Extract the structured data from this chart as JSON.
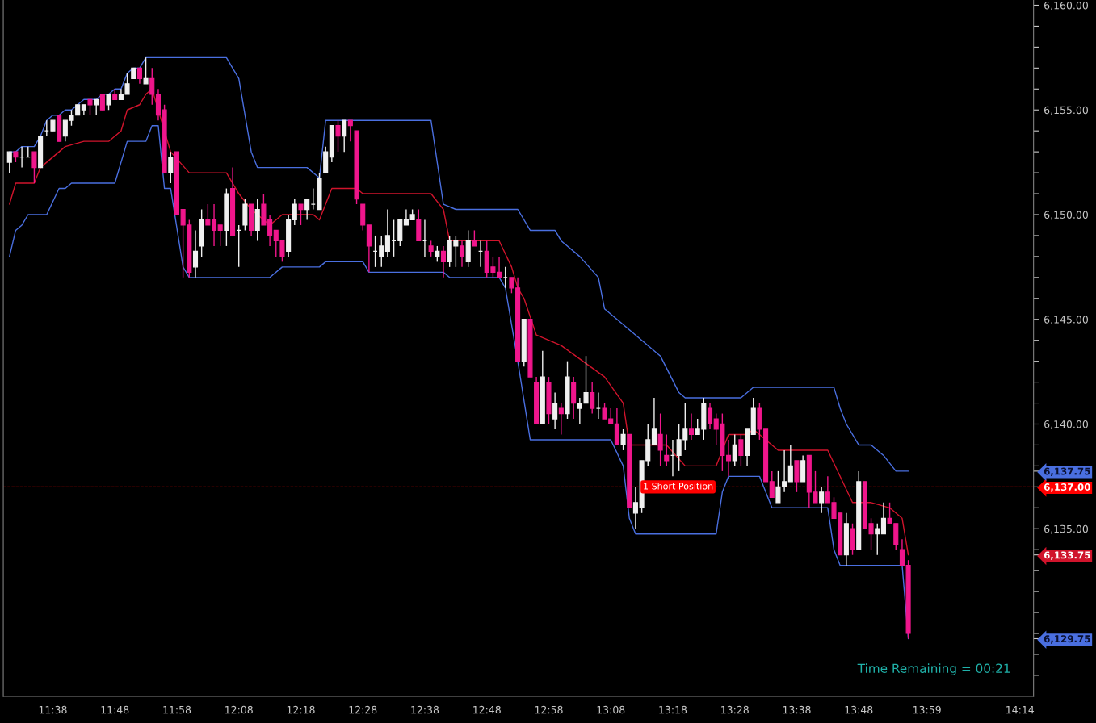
{
  "chart_data": {
    "type": "candlestick",
    "x": [
      11.5167,
      11.5333,
      11.55,
      11.5667,
      11.5833,
      11.6,
      11.6167,
      11.6333,
      11.65,
      11.6667,
      11.6833,
      11.7,
      11.7167,
      11.7333,
      11.75,
      11.7667,
      11.7833,
      11.8,
      11.8167,
      11.8333,
      11.85,
      11.8667,
      11.8833,
      11.9,
      11.9167,
      11.9333,
      11.95,
      11.9667,
      11.9833,
      12.0,
      12.0167,
      12.0333,
      12.05,
      12.0667,
      12.0833,
      12.1,
      12.1167,
      12.1333,
      12.15,
      12.1667,
      12.1833,
      12.2,
      12.2167,
      12.2333,
      12.25,
      12.2667,
      12.2833,
      12.3,
      12.3167,
      12.3333,
      12.35,
      12.3667,
      12.3833,
      12.4,
      12.4167,
      12.4333,
      12.45,
      12.4667,
      12.4833,
      12.5,
      12.5167,
      12.5333,
      12.55,
      12.5667,
      12.5833,
      12.6,
      12.6167,
      12.6333,
      12.65,
      12.6667,
      12.6833,
      12.7,
      12.7167,
      12.7333,
      12.75,
      12.7667,
      12.7833,
      12.8,
      12.8167,
      12.8333,
      12.85,
      12.8667,
      12.8833,
      12.9,
      12.9167,
      12.9333,
      12.95,
      12.9667,
      12.9833,
      13.0,
      13.0167,
      13.0333,
      13.05,
      13.0667,
      13.0833,
      13.1,
      13.1167,
      13.1333,
      13.15,
      13.1667,
      13.1833,
      13.2,
      13.2167,
      13.2333,
      13.25,
      13.2667,
      13.2833,
      13.3,
      13.3167,
      13.3333,
      13.35,
      13.3667,
      13.3833,
      13.4,
      13.4167,
      13.4333,
      13.45,
      13.4667,
      13.4833,
      13.5,
      13.5167,
      13.5333,
      13.55,
      13.5667,
      13.5833,
      13.6,
      13.6167,
      13.6333,
      13.65,
      13.6667,
      13.6833,
      13.7,
      13.7167,
      13.7333,
      13.75,
      13.7667,
      13.7833,
      13.8,
      13.8167,
      13.8333,
      13.85,
      13.8667,
      13.8833,
      13.9,
      13.9167,
      13.9333
    ],
    "ohlc": [
      [
        6152.5,
        6153.0,
        6152.0,
        6153.0
      ],
      [
        6153.0,
        6153.0,
        6152.5,
        6152.75
      ],
      [
        6152.75,
        6153.25,
        6152.25,
        6152.75
      ],
      [
        6152.75,
        6153.25,
        6152.75,
        6152.75
      ],
      [
        6153.0,
        6153.0,
        6151.5,
        6152.25
      ],
      [
        6152.25,
        6153.75,
        6152.25,
        6153.75
      ],
      [
        6154.0,
        6154.5,
        6153.75,
        6154.0
      ],
      [
        6154.0,
        6154.5,
        6154.0,
        6154.5
      ],
      [
        6154.75,
        6154.75,
        6153.5,
        6153.5
      ],
      [
        6153.75,
        6154.5,
        6153.5,
        6154.5
      ],
      [
        6154.5,
        6155.0,
        6154.25,
        6154.75
      ],
      [
        6154.75,
        6155.25,
        6154.75,
        6155.25
      ],
      [
        6155.0,
        6155.25,
        6154.75,
        6155.25
      ],
      [
        6155.5,
        6155.5,
        6154.75,
        6155.25
      ],
      [
        6155.25,
        6155.5,
        6154.75,
        6155.5
      ],
      [
        6155.75,
        6155.75,
        6155.0,
        6155.0
      ],
      [
        6155.25,
        6155.75,
        6155.0,
        6155.75
      ],
      [
        6155.75,
        6156.0,
        6155.5,
        6155.5
      ],
      [
        6155.5,
        6156.0,
        6155.5,
        6155.75
      ],
      [
        6155.75,
        6156.75,
        6155.75,
        6156.25
      ],
      [
        6156.5,
        6157.0,
        6156.5,
        6157.0
      ],
      [
        6157.0,
        6157.0,
        6156.25,
        6156.5
      ],
      [
        6156.25,
        6157.5,
        6156.25,
        6156.5
      ],
      [
        6156.5,
        6157.0,
        6155.25,
        6155.75
      ],
      [
        6155.75,
        6156.0,
        6154.5,
        6154.75
      ],
      [
        6155.0,
        6155.25,
        6152.0,
        6152.0
      ],
      [
        6152.0,
        6153.0,
        6151.5,
        6152.75
      ],
      [
        6153.0,
        6153.0,
        6150.0,
        6150.0
      ],
      [
        6150.25,
        6150.25,
        6147.0,
        6149.5
      ],
      [
        6149.5,
        6149.75,
        6147.0,
        6147.25
      ],
      [
        6147.5,
        6149.25,
        6147.0,
        6148.25
      ],
      [
        6148.5,
        6150.25,
        6148.0,
        6149.75
      ],
      [
        6149.75,
        6150.5,
        6149.5,
        6149.5
      ],
      [
        6149.75,
        6150.5,
        6148.5,
        6149.25
      ],
      [
        6149.5,
        6149.5,
        6148.5,
        6149.25
      ],
      [
        6149.25,
        6151.25,
        6148.5,
        6151.0
      ],
      [
        6151.25,
        6152.25,
        6149.0,
        6149.0
      ],
      [
        6149.25,
        6149.5,
        6147.5,
        6149.25
      ],
      [
        6149.5,
        6150.75,
        6149.25,
        6150.5
      ],
      [
        6150.5,
        6150.5,
        6149.0,
        6149.25
      ],
      [
        6149.25,
        6150.75,
        6148.75,
        6150.25
      ],
      [
        6150.5,
        6151.0,
        6149.5,
        6149.5
      ],
      [
        6149.75,
        6150.0,
        6148.5,
        6149.0
      ],
      [
        6149.25,
        6149.25,
        6148.0,
        6148.75
      ],
      [
        6148.75,
        6148.75,
        6147.75,
        6148.0
      ],
      [
        6148.25,
        6150.0,
        6148.0,
        6149.75
      ],
      [
        6149.75,
        6150.75,
        6149.5,
        6150.5
      ],
      [
        6150.5,
        6150.5,
        6149.5,
        6150.25
      ],
      [
        6150.25,
        6150.75,
        6149.75,
        6150.75
      ],
      [
        6150.5,
        6151.25,
        6150.25,
        6150.5
      ],
      [
        6150.25,
        6152.0,
        6150.25,
        6151.75
      ],
      [
        6152.0,
        6153.25,
        6152.0,
        6153.0
      ],
      [
        6152.75,
        6154.25,
        6152.5,
        6154.25
      ],
      [
        6154.25,
        6154.5,
        6153.0,
        6153.75
      ],
      [
        6153.75,
        6154.5,
        6153.0,
        6154.5
      ],
      [
        6154.5,
        6154.5,
        6153.5,
        6154.25
      ],
      [
        6154.0,
        6154.0,
        6150.5,
        6150.75
      ],
      [
        6150.5,
        6150.5,
        6149.25,
        6149.5
      ],
      [
        6149.5,
        6149.5,
        6147.25,
        6148.5
      ],
      [
        6148.25,
        6149.0,
        6147.5,
        6148.25
      ],
      [
        6148.0,
        6149.0,
        6147.5,
        6148.5
      ],
      [
        6148.25,
        6150.25,
        6148.0,
        6149.0
      ],
      [
        6148.75,
        6149.75,
        6148.0,
        6148.75
      ],
      [
        6148.75,
        6149.75,
        6148.5,
        6149.75
      ],
      [
        6149.5,
        6150.25,
        6149.5,
        6149.75
      ],
      [
        6149.75,
        6150.25,
        6149.75,
        6150.0
      ],
      [
        6149.75,
        6150.25,
        6148.75,
        6148.75
      ],
      [
        6148.75,
        6149.75,
        6148.0,
        6148.75
      ],
      [
        6148.5,
        6148.75,
        6148.0,
        6148.25
      ],
      [
        6148.0,
        6148.5,
        6147.75,
        6148.25
      ],
      [
        6148.25,
        6148.5,
        6147.0,
        6147.75
      ],
      [
        6147.75,
        6149.0,
        6147.5,
        6148.75
      ],
      [
        6148.5,
        6149.0,
        6147.5,
        6148.75
      ],
      [
        6148.5,
        6148.75,
        6147.5,
        6148.0
      ],
      [
        6147.75,
        6149.25,
        6147.5,
        6148.75
      ],
      [
        6148.75,
        6149.25,
        6148.5,
        6148.5
      ],
      [
        6148.25,
        6148.75,
        6147.5,
        6148.25
      ],
      [
        6148.25,
        6148.75,
        6147.0,
        6147.25
      ],
      [
        6147.5,
        6148.0,
        6147.0,
        6147.25
      ],
      [
        6147.25,
        6148.0,
        6147.0,
        6147.0
      ],
      [
        6147.0,
        6147.5,
        6146.5,
        6147.0
      ],
      [
        6147.0,
        6147.0,
        6146.25,
        6146.5
      ],
      [
        6146.5,
        6147.0,
        6143.0,
        6143.0
      ],
      [
        6143.0,
        6145.0,
        6142.75,
        6145.0
      ],
      [
        6145.0,
        6145.0,
        6142.25,
        6142.25
      ],
      [
        6142.0,
        6142.25,
        6140.0,
        6140.0
      ],
      [
        6140.0,
        6143.5,
        6140.0,
        6142.25
      ],
      [
        6142.0,
        6142.25,
        6140.0,
        6140.5
      ],
      [
        6140.25,
        6141.5,
        6139.75,
        6141.0
      ],
      [
        6140.75,
        6141.0,
        6139.5,
        6140.5
      ],
      [
        6140.5,
        6143.0,
        6140.25,
        6142.25
      ],
      [
        6142.0,
        6142.25,
        6140.25,
        6141.0
      ],
      [
        6140.75,
        6141.25,
        6140.0,
        6141.0
      ],
      [
        6141.0,
        6143.25,
        6141.0,
        6141.5
      ],
      [
        6141.5,
        6142.0,
        6140.5,
        6140.75
      ],
      [
        6140.75,
        6141.5,
        6140.25,
        6140.75
      ],
      [
        6140.75,
        6141.0,
        6140.25,
        6140.25
      ],
      [
        6140.25,
        6140.75,
        6140.0,
        6140.0
      ],
      [
        6140.0,
        6140.75,
        6139.0,
        6139.0
      ],
      [
        6139.0,
        6139.75,
        6138.75,
        6139.5
      ],
      [
        6139.5,
        6139.5,
        6136.0,
        6136.0
      ],
      [
        6135.75,
        6137.0,
        6135.0,
        6136.25
      ],
      [
        6136.0,
        6138.25,
        6135.75,
        6138.25
      ],
      [
        6138.25,
        6140.0,
        6138.0,
        6139.25
      ],
      [
        6139.0,
        6141.25,
        6139.0,
        6139.75
      ],
      [
        6139.5,
        6140.5,
        6138.0,
        6138.75
      ],
      [
        6138.5,
        6139.5,
        6138.0,
        6138.25
      ],
      [
        6138.5,
        6139.25,
        6137.5,
        6138.5
      ],
      [
        6138.5,
        6140.0,
        6137.75,
        6139.25
      ],
      [
        6139.25,
        6141.0,
        6138.75,
        6139.75
      ],
      [
        6139.75,
        6140.5,
        6139.25,
        6139.5
      ],
      [
        6139.5,
        6140.25,
        6139.5,
        6139.75
      ],
      [
        6139.75,
        6141.25,
        6139.25,
        6141.0
      ],
      [
        6140.75,
        6141.0,
        6139.75,
        6140.0
      ],
      [
        6140.25,
        6140.5,
        6139.0,
        6139.75
      ],
      [
        6140.0,
        6140.5,
        6137.75,
        6138.5
      ],
      [
        6138.5,
        6139.25,
        6137.5,
        6138.25
      ],
      [
        6138.25,
        6139.5,
        6138.0,
        6139.0
      ],
      [
        6139.25,
        6139.5,
        6138.0,
        6138.5
      ],
      [
        6138.5,
        6139.75,
        6138.0,
        6139.75
      ],
      [
        6139.5,
        6141.25,
        6139.5,
        6140.75
      ],
      [
        6140.75,
        6141.0,
        6139.25,
        6139.75
      ],
      [
        6139.75,
        6139.75,
        6137.25,
        6137.25
      ],
      [
        6137.25,
        6137.75,
        6136.5,
        6136.5
      ],
      [
        6136.25,
        6137.75,
        6136.25,
        6137.0
      ],
      [
        6137.0,
        6138.75,
        6136.75,
        6137.25
      ],
      [
        6137.25,
        6139.0,
        6137.25,
        6138.0
      ],
      [
        6138.25,
        6138.25,
        6136.75,
        6137.25
      ],
      [
        6137.25,
        6138.5,
        6137.25,
        6138.25
      ],
      [
        6138.5,
        6138.5,
        6136.0,
        6136.75
      ],
      [
        6136.75,
        6137.75,
        6136.25,
        6136.25
      ],
      [
        6136.25,
        6137.0,
        6135.75,
        6136.75
      ],
      [
        6136.75,
        6137.5,
        6136.25,
        6136.25
      ],
      [
        6136.25,
        6136.5,
        6135.5,
        6135.5
      ],
      [
        6135.75,
        6135.75,
        6133.75,
        6133.75
      ],
      [
        6133.75,
        6135.75,
        6133.25,
        6135.25
      ],
      [
        6135.0,
        6135.25,
        6133.75,
        6134.0
      ],
      [
        6134.0,
        6137.75,
        6134.0,
        6137.25
      ],
      [
        6137.25,
        6137.25,
        6135.0,
        6135.0
      ],
      [
        6135.25,
        6135.5,
        6134.0,
        6134.75
      ],
      [
        6134.75,
        6135.25,
        6133.75,
        6135.0
      ],
      [
        6134.75,
        6136.25,
        6134.75,
        6135.5
      ],
      [
        6135.5,
        6136.25,
        6135.25,
        6135.25
      ],
      [
        6135.25,
        6135.25,
        6134.0,
        6134.25
      ],
      [
        6134.0,
        6134.5,
        6133.25,
        6133.25
      ],
      [
        6133.25,
        6133.5,
        6129.75,
        6130.0
      ]
    ],
    "colors": [
      "#f0f0f0",
      "#f0168c",
      "#f0f0f0",
      "#f0f0f0",
      "#f0168c",
      "#f0f0f0",
      "#f0f0f0",
      "#f0f0f0",
      "#f0168c",
      "#f0f0f0",
      "#f0f0f0",
      "#f0f0f0",
      "#f0f0f0",
      "#f0168c",
      "#f0f0f0",
      "#f0168c",
      "#f0f0f0",
      "#f0168c",
      "#f0f0f0",
      "#f0f0f0",
      "#f0f0f0",
      "#f0168c",
      "#f0f0f0",
      "#f0168c",
      "#f0168c",
      "#f0168c",
      "#f0f0f0",
      "#f0168c",
      "#f0168c",
      "#f0168c",
      "#f0f0f0",
      "#f0f0f0",
      "#f0168c",
      "#f0168c",
      "#f0168c",
      "#f0f0f0",
      "#f0168c",
      "#f0f0f0",
      "#f0f0f0",
      "#f0168c",
      "#f0f0f0",
      "#f0168c",
      "#f0168c",
      "#f0168c",
      "#f0168c",
      "#f0f0f0",
      "#f0f0f0",
      "#f0168c",
      "#f0f0f0",
      "#f0f0f0",
      "#f0f0f0",
      "#f0f0f0",
      "#f0f0f0",
      "#f0168c",
      "#f0f0f0",
      "#f0168c",
      "#f0168c",
      "#f0168c",
      "#f0168c",
      "#f0f0f0",
      "#f0f0f0",
      "#f0f0f0",
      "#f0f0f0",
      "#f0f0f0",
      "#f0f0f0",
      "#f0f0f0",
      "#f0168c",
      "#f0f0f0",
      "#f0168c",
      "#f0f0f0",
      "#f0168c",
      "#f0f0f0",
      "#f0f0f0",
      "#f0168c",
      "#f0f0f0",
      "#f0168c",
      "#f0f0f0",
      "#f0168c",
      "#f0168c",
      "#f0168c",
      "#f0f0f0",
      "#f0168c",
      "#f0168c",
      "#f0f0f0",
      "#f0168c",
      "#f0168c",
      "#f0f0f0",
      "#f0168c",
      "#f0f0f0",
      "#f0168c",
      "#f0f0f0",
      "#f0168c",
      "#f0f0f0",
      "#f0f0f0",
      "#f0168c",
      "#f0f0f0",
      "#f0168c",
      "#f0168c",
      "#f0168c",
      "#f0f0f0",
      "#f0168c",
      "#f0f0f0",
      "#f0f0f0",
      "#f0f0f0",
      "#f0f0f0",
      "#f0168c",
      "#f0168c",
      "#f0f0f0",
      "#f0f0f0",
      "#f0f0f0",
      "#f0168c",
      "#f0f0f0",
      "#f0f0f0",
      "#f0168c",
      "#f0168c",
      "#f0168c",
      "#f0168c",
      "#f0f0f0",
      "#f0168c",
      "#f0f0f0",
      "#f0f0f0",
      "#f0168c",
      "#f0168c",
      "#f0168c",
      "#f0f0f0",
      "#f0f0f0",
      "#f0f0f0",
      "#f0168c",
      "#f0f0f0",
      "#f0168c",
      "#f0168c",
      "#f0f0f0",
      "#f0168c",
      "#f0168c",
      "#f0168c",
      "#f0f0f0",
      "#f0168c",
      "#f0f0f0",
      "#f0168c",
      "#f0168c",
      "#f0f0f0",
      "#f0f0f0",
      "#f0168c",
      "#f0168c",
      "#f0168c",
      "#f0168c"
    ],
    "series": [
      {
        "type": "line",
        "color": "#4a6fe0",
        "x": [
          11.5167,
          11.5333,
          11.55,
          11.5833,
          11.6,
          11.6167,
          11.6333,
          11.65,
          11.6667,
          11.6833,
          11.7,
          11.7167,
          11.75,
          11.7667,
          11.7833,
          11.8,
          11.8167,
          11.8333,
          11.85,
          11.8667,
          11.8833,
          12.1,
          12.1333,
          12.1667,
          12.1833,
          12.3167,
          12.35,
          12.3667,
          12.65,
          12.6833,
          12.7167,
          12.8833,
          12.9167,
          12.9833,
          13.0,
          13.05,
          13.1,
          13.1167,
          13.2667,
          13.3167,
          13.3333,
          13.4833,
          13.5167,
          13.7333,
          13.75,
          13.7667,
          13.8,
          13.8333,
          13.8667,
          13.9,
          13.9333
        ],
        "values": [
          6153.0,
          6153.0,
          6153.25,
          6153.25,
          6153.75,
          6154.5,
          6154.75,
          6154.75,
          6155.0,
          6155.0,
          6155.25,
          6155.5,
          6155.5,
          6155.75,
          6155.75,
          6156.0,
          6156.0,
          6156.75,
          6157.0,
          6157.0,
          6157.5,
          6157.5,
          6156.5,
          6153.0,
          6152.25,
          6152.25,
          6151.75,
          6154.5,
          6154.5,
          6150.5,
          6150.25,
          6150.25,
          6149.25,
          6149.25,
          6148.75,
          6148.0,
          6147.0,
          6145.5,
          6143.25,
          6141.5,
          6141.25,
          6141.25,
          6141.75,
          6141.75,
          6140.75,
          6140.0,
          6139.0,
          6139.0,
          6138.5,
          6137.75,
          6137.75
        ]
      },
      {
        "type": "line",
        "color": "#d0142c",
        "x": [
          11.5167,
          11.5333,
          11.5833,
          11.6,
          11.6333,
          11.6667,
          11.7167,
          11.7833,
          11.8167,
          11.8333,
          11.8667,
          11.8833,
          11.9,
          11.95,
          12.0,
          12.1,
          12.1333,
          12.1667,
          12.1833,
          12.2167,
          12.25,
          12.3333,
          12.35,
          12.3833,
          12.45,
          12.4667,
          12.65,
          12.6833,
          12.7,
          12.8333,
          12.8667,
          12.8833,
          12.9,
          12.9333,
          13.0,
          13.1167,
          13.1667,
          13.1833,
          13.2833,
          13.3333,
          13.4167,
          13.45,
          13.5,
          13.5167,
          13.5833,
          13.7167,
          13.7833,
          13.8333,
          13.8833,
          13.9167,
          13.9333
        ],
        "values": [
          6150.5,
          6151.5,
          6151.5,
          6152.25,
          6152.75,
          6153.25,
          6153.5,
          6153.5,
          6154.0,
          6155.0,
          6155.25,
          6155.75,
          6156.0,
          6153.0,
          6152.0,
          6152.0,
          6151.0,
          6150.25,
          6150.0,
          6149.5,
          6150.0,
          6150.0,
          6149.75,
          6151.25,
          6151.25,
          6151.0,
          6151.0,
          6150.25,
          6148.75,
          6148.75,
          6147.5,
          6146.5,
          6146.0,
          6144.25,
          6143.75,
          6142.25,
          6141.0,
          6139.0,
          6139.0,
          6138.0,
          6138.0,
          6139.5,
          6139.5,
          6139.75,
          6138.75,
          6138.75,
          6136.25,
          6136.25,
          6136.0,
          6135.5,
          6133.75
        ]
      },
      {
        "type": "line",
        "color": "#4a6fe0",
        "x": [
          11.5167,
          11.5333,
          11.55,
          11.5667,
          11.6167,
          11.65,
          11.6667,
          11.6833,
          11.8,
          11.8333,
          11.8833,
          11.9,
          11.9167,
          11.9333,
          11.95,
          11.9833,
          12.0,
          12.2167,
          12.25,
          12.35,
          12.3667,
          12.4667,
          12.4833,
          12.6833,
          12.7,
          12.8333,
          12.85,
          12.8833,
          12.9167,
          13.1333,
          13.1667,
          13.1833,
          13.2,
          13.4167,
          13.4333,
          13.45,
          13.5333,
          13.5667,
          13.7167,
          13.7333,
          13.75,
          13.9167,
          13.9333
        ],
        "values": [
          6148.0,
          6149.25,
          6149.5,
          6150.0,
          6150.0,
          6151.25,
          6151.25,
          6151.5,
          6151.5,
          6153.5,
          6153.5,
          6154.25,
          6154.25,
          6151.25,
          6151.25,
          6147.5,
          6147.0,
          6147.0,
          6147.5,
          6147.5,
          6147.75,
          6147.75,
          6147.25,
          6147.25,
          6147.0,
          6147.0,
          6146.5,
          6143.0,
          6139.25,
          6139.25,
          6138.0,
          6135.5,
          6134.75,
          6134.75,
          6136.75,
          6137.5,
          6137.5,
          6136.0,
          6136.0,
          6134.0,
          6133.25,
          6133.25,
          6129.75
        ]
      }
    ],
    "xlim": [
      11.5,
      14.27
    ],
    "xticks": [
      {
        "value": 11.6333,
        "label": "11:38"
      },
      {
        "value": 11.8,
        "label": "11:48"
      },
      {
        "value": 11.9667,
        "label": "11:58"
      },
      {
        "value": 12.1333,
        "label": "12:08"
      },
      {
        "value": 12.3,
        "label": "12:18"
      },
      {
        "value": 12.4667,
        "label": "12:28"
      },
      {
        "value": 12.6333,
        "label": "12:38"
      },
      {
        "value": 12.8,
        "label": "12:48"
      },
      {
        "value": 12.9667,
        "label": "12:58"
      },
      {
        "value": 13.1333,
        "label": "13:08"
      },
      {
        "value": 13.3,
        "label": "13:18"
      },
      {
        "value": 13.4667,
        "label": "13:28"
      },
      {
        "value": 13.6333,
        "label": "13:38"
      },
      {
        "value": 13.8,
        "label": "13:48"
      },
      {
        "value": 13.9833,
        "label": "13:59"
      },
      {
        "value": 14.2333,
        "label": "14:14"
      }
    ],
    "ylim": [
      6127.0,
      6160.25
    ],
    "yticks": [
      {
        "value": 6128,
        "label": null
      },
      {
        "value": 6129,
        "label": null
      },
      {
        "value": 6129.75,
        "label": "6,129.75"
      },
      {
        "value": 6130,
        "label": null
      },
      {
        "value": 6131,
        "label": null
      },
      {
        "value": 6132,
        "label": null
      },
      {
        "value": 6133,
        "label": null
      },
      {
        "value": 6133.75,
        "label": "6,133.75"
      },
      {
        "value": 6134,
        "label": null
      },
      {
        "value": 6135,
        "label": "6,135.00"
      },
      {
        "value": 6136,
        "label": null
      },
      {
        "value": 6137,
        "label": "6,137.00"
      },
      {
        "value": 6137.75,
        "label": "6,137.75"
      },
      {
        "value": 6138,
        "label": null
      },
      {
        "value": 6139,
        "label": null
      },
      {
        "value": 6140,
        "label": "6,140.00"
      },
      {
        "value": 6141,
        "label": null
      },
      {
        "value": 6142,
        "label": null
      },
      {
        "value": 6143,
        "label": null
      },
      {
        "value": 6144,
        "label": null
      },
      {
        "value": 6145,
        "label": "6,145.00"
      },
      {
        "value": 6146,
        "label": null
      },
      {
        "value": 6147,
        "label": null
      },
      {
        "value": 6148,
        "label": null
      },
      {
        "value": 6149,
        "label": null
      },
      {
        "value": 6150,
        "label": "6,150.00"
      },
      {
        "value": 6151,
        "label": null
      },
      {
        "value": 6152,
        "label": null
      },
      {
        "value": 6153,
        "label": null
      },
      {
        "value": 6154,
        "label": null
      },
      {
        "value": 6155,
        "label": "6,155.00"
      },
      {
        "value": 6156,
        "label": null
      },
      {
        "value": 6157,
        "label": null
      },
      {
        "value": 6158,
        "label": null
      },
      {
        "value": 6159,
        "label": null
      },
      {
        "value": 6160,
        "label": "6,160.00"
      }
    ],
    "ref_lines": [
      {
        "axis": "y",
        "value": 6137.0,
        "label": "1 Short Position",
        "color": "#ff0000",
        "line_style": "dashed"
      }
    ],
    "annotations": [
      "Time Remaining = 00:21"
    ],
    "grid": false,
    "legend": false
  }
}
